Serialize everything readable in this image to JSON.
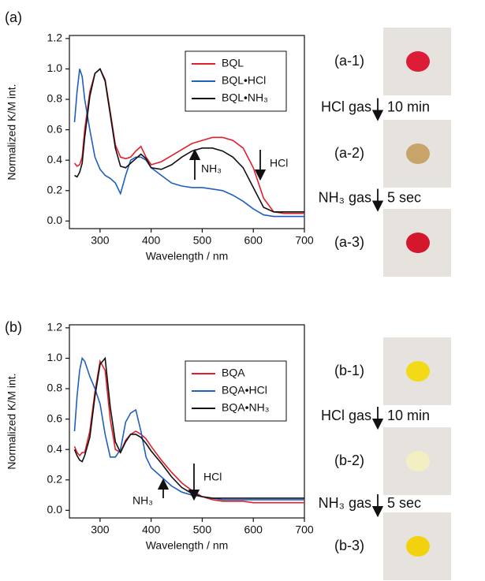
{
  "chart_data": [
    {
      "type": "line",
      "xlabel": "Wavelength / nm",
      "ylabel": "Normalized K/M int.",
      "x": [
        250,
        255,
        260,
        265,
        270,
        280,
        290,
        300,
        310,
        320,
        330,
        340,
        350,
        360,
        370,
        380,
        390,
        400,
        420,
        440,
        460,
        480,
        500,
        520,
        540,
        560,
        580,
        600,
        620,
        640,
        660,
        680,
        700
      ],
      "xlim": [
        240,
        700
      ],
      "xticks": [
        300,
        400,
        500,
        600,
        700
      ],
      "ylim": [
        -0.05,
        1.22
      ],
      "yticks": [
        {
          "value": 0,
          "label": "0.0"
        },
        0.2,
        0.4,
        0.6,
        0.8,
        {
          "value": 1,
          "label": "1.0"
        },
        1.2
      ],
      "legend": "upper right",
      "annotations": [
        "NH₃",
        "HCl"
      ],
      "series": [
        {
          "name": "BQL",
          "color": "#e0202a",
          "values": [
            0.38,
            0.36,
            0.37,
            0.42,
            0.6,
            0.85,
            0.97,
            1.0,
            0.93,
            0.72,
            0.5,
            0.42,
            0.41,
            0.42,
            0.46,
            0.49,
            0.42,
            0.37,
            0.39,
            0.43,
            0.47,
            0.51,
            0.53,
            0.55,
            0.55,
            0.53,
            0.48,
            0.35,
            0.15,
            0.06,
            0.05,
            0.05,
            0.05
          ]
        },
        {
          "name": "BQL•HCl",
          "color": "#1f5fbf",
          "values": [
            0.65,
            0.85,
            1.0,
            0.95,
            0.8,
            0.6,
            0.42,
            0.34,
            0.3,
            0.28,
            0.25,
            0.18,
            0.3,
            0.4,
            0.42,
            0.42,
            0.4,
            0.35,
            0.3,
            0.25,
            0.23,
            0.22,
            0.22,
            0.21,
            0.2,
            0.17,
            0.13,
            0.08,
            0.04,
            0.03,
            0.03,
            0.03,
            0.03
          ]
        },
        {
          "name": "BQL•NH₃",
          "color": "#111111",
          "values": [
            0.3,
            0.29,
            0.32,
            0.38,
            0.55,
            0.82,
            0.97,
            1.0,
            0.92,
            0.7,
            0.48,
            0.36,
            0.35,
            0.38,
            0.41,
            0.44,
            0.41,
            0.35,
            0.34,
            0.37,
            0.42,
            0.46,
            0.48,
            0.48,
            0.46,
            0.42,
            0.35,
            0.22,
            0.09,
            0.06,
            0.06,
            0.06,
            0.06
          ]
        }
      ]
    },
    {
      "type": "line",
      "xlabel": "Wavelength / nm",
      "ylabel": "Normalized K/M int.",
      "x": [
        250,
        255,
        260,
        265,
        270,
        280,
        290,
        300,
        310,
        320,
        330,
        340,
        350,
        360,
        370,
        380,
        390,
        400,
        420,
        440,
        460,
        480,
        500,
        520,
        540,
        560,
        580,
        600,
        620,
        640,
        660,
        680,
        700
      ],
      "xlim": [
        240,
        700
      ],
      "xticks": [
        300,
        400,
        500,
        600,
        700
      ],
      "ylim": [
        -0.05,
        1.22
      ],
      "yticks": [
        {
          "value": 0,
          "label": "0.0"
        },
        0.2,
        0.4,
        0.6,
        0.8,
        {
          "value": 1,
          "label": "1.0"
        },
        1.2
      ],
      "legend": "upper right",
      "annotations": [
        "NH₃",
        "HCl"
      ],
      "series": [
        {
          "name": "BQA",
          "color": "#e0202a",
          "values": [
            0.42,
            0.38,
            0.36,
            0.38,
            0.38,
            0.52,
            0.78,
            0.98,
            0.92,
            0.6,
            0.4,
            0.38,
            0.46,
            0.5,
            0.52,
            0.5,
            0.47,
            0.42,
            0.33,
            0.25,
            0.18,
            0.13,
            0.09,
            0.07,
            0.06,
            0.06,
            0.06,
            0.05,
            0.05,
            0.05,
            0.05,
            0.05,
            0.05
          ]
        },
        {
          "name": "BQA•HCl",
          "color": "#1f5fbf",
          "values": [
            0.52,
            0.75,
            0.92,
            1.0,
            0.98,
            0.88,
            0.8,
            0.7,
            0.5,
            0.35,
            0.35,
            0.4,
            0.58,
            0.64,
            0.66,
            0.52,
            0.35,
            0.28,
            0.22,
            0.16,
            0.12,
            0.1,
            0.09,
            0.08,
            0.07,
            0.07,
            0.07,
            0.07,
            0.07,
            0.07,
            0.07,
            0.07,
            0.07
          ]
        },
        {
          "name": "BQA•NH₃",
          "color": "#111111",
          "values": [
            0.4,
            0.36,
            0.33,
            0.32,
            0.36,
            0.48,
            0.75,
            0.96,
            1.0,
            0.68,
            0.45,
            0.38,
            0.45,
            0.5,
            0.5,
            0.48,
            0.44,
            0.39,
            0.31,
            0.22,
            0.15,
            0.11,
            0.09,
            0.08,
            0.08,
            0.08,
            0.08,
            0.08,
            0.08,
            0.08,
            0.08,
            0.08,
            0.08
          ]
        }
      ]
    }
  ],
  "panels": [
    {
      "label": "(a)",
      "photos": [
        {
          "label": "(a-1)",
          "color": "#dd1c38"
        },
        {
          "label": "(a-2)",
          "color": "#c9a46a"
        },
        {
          "label": "(a-3)",
          "color": "#d4172c"
        }
      ],
      "steps": [
        {
          "gas": "HCl gas",
          "time": "10 min"
        },
        {
          "gas": "NH₃ gas",
          "time": "5 sec"
        }
      ]
    },
    {
      "label": "(b)",
      "photos": [
        {
          "label": "(b-1)",
          "color": "#f3da16"
        },
        {
          "label": "(b-2)",
          "color": "#f4efc2"
        },
        {
          "label": "(b-3)",
          "color": "#f2d20f"
        }
      ],
      "steps": [
        {
          "gas": "HCl gas",
          "time": "10 min"
        },
        {
          "gas": "NH₃ gas",
          "time": "5 sec"
        }
      ]
    }
  ]
}
